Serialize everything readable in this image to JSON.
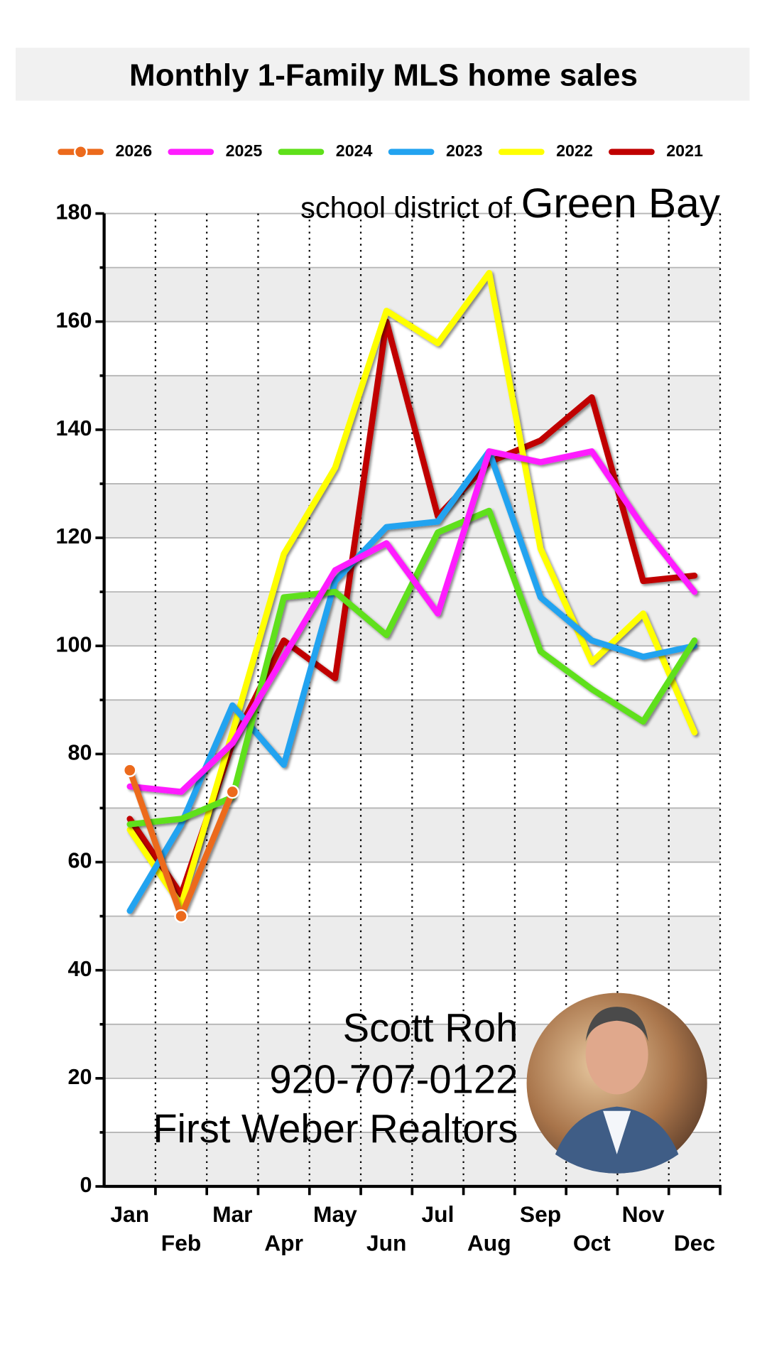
{
  "chart_data": {
    "type": "line",
    "title": "Monthly 1-Family  MLS home sales",
    "subtitle_prefix": "school district of",
    "subtitle_place": "Green Bay",
    "annotations": [
      "Scott Roh",
      "920-707-0122",
      "First Weber Realtors"
    ],
    "categories": [
      "Jan",
      "Feb",
      "Mar",
      "Apr",
      "May",
      "Jun",
      "Jul",
      "Aug",
      "Sep",
      "Oct",
      "Nov",
      "Dec"
    ],
    "series": [
      {
        "name": "2026",
        "color": "#ec6a1c",
        "markers": true,
        "values": [
          77,
          50,
          73,
          null,
          null,
          null,
          null,
          null,
          null,
          null,
          null,
          null
        ]
      },
      {
        "name": "2025",
        "color": "#ff1dff",
        "values": [
          74,
          73,
          82,
          98,
          114,
          119,
          106,
          136,
          134,
          136,
          122,
          110
        ]
      },
      {
        "name": "2024",
        "color": "#5fe01a",
        "values": [
          67,
          68,
          72,
          109,
          110,
          102,
          121,
          125,
          99,
          92,
          86,
          101
        ]
      },
      {
        "name": "2023",
        "color": "#23a3f0",
        "values": [
          51,
          67,
          89,
          78,
          112,
          122,
          123,
          136,
          109,
          101,
          98,
          100
        ]
      },
      {
        "name": "2022",
        "color": "#ffff00",
        "values": [
          66,
          52,
          84,
          117,
          133,
          162,
          156,
          169,
          118,
          97,
          106,
          84
        ]
      },
      {
        "name": "2021",
        "color": "#c00000",
        "values": [
          68,
          54,
          82,
          101,
          94,
          160,
          124,
          134,
          138,
          146,
          112,
          113
        ]
      }
    ],
    "ylim": [
      0,
      180
    ],
    "yticks": [
      0,
      20,
      40,
      60,
      80,
      100,
      120,
      140,
      160,
      180
    ],
    "yticks_minor": [
      10,
      30,
      50,
      70,
      90,
      110,
      130,
      150,
      170
    ],
    "grid": true,
    "legend": "top"
  }
}
